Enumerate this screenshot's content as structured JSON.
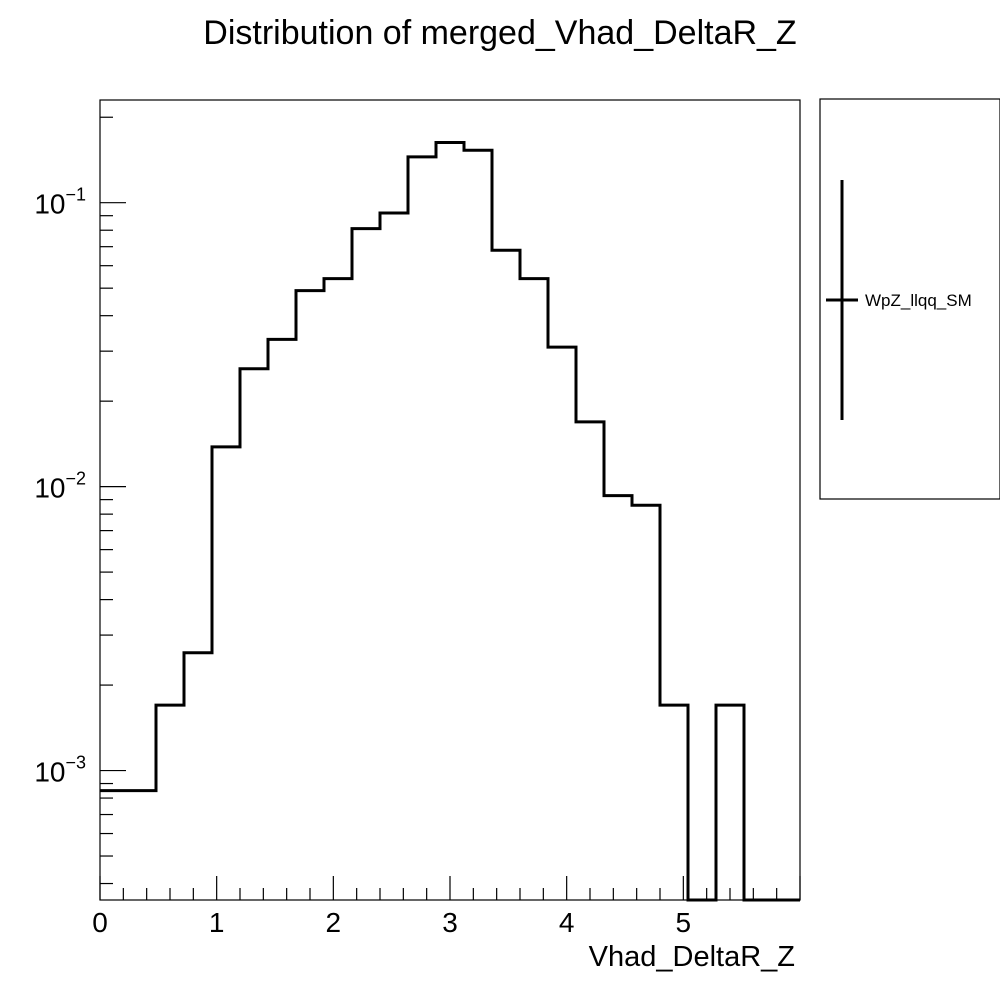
{
  "chart_data": {
    "type": "step",
    "title": "Distribution of merged_Vhad_DeltaR_Z",
    "xlabel": "Vhad_DeltaR_Z",
    "ylabel": "",
    "xlim": [
      0,
      6
    ],
    "ylim": [
      0.00035,
      0.23
    ],
    "yscale": "log",
    "grid": false,
    "legend_position": "right",
    "x_tick_labels": [
      "0",
      "1",
      "2",
      "3",
      "4",
      "5"
    ],
    "y_tick_labels": [
      {
        "value": 0.001,
        "base": "10",
        "exp": "−3"
      },
      {
        "value": 0.01,
        "base": "10",
        "exp": "−2"
      },
      {
        "value": 0.1,
        "base": "10",
        "exp": "−1"
      }
    ],
    "series": [
      {
        "name": "WpZ_llqq_SM",
        "color": "#000000",
        "bin_edges": [
          0,
          0.48,
          0.72,
          0.96,
          1.2,
          1.44,
          1.68,
          1.92,
          2.16,
          2.4,
          2.64,
          2.88,
          3.12,
          3.36,
          3.6,
          3.84,
          4.08,
          4.32,
          4.56,
          4.8,
          5.04,
          5.28,
          5.52,
          6.0
        ],
        "values": [
          0.00085,
          0.0017,
          0.0026,
          0.0138,
          0.026,
          0.033,
          0.049,
          0.054,
          0.081,
          0.092,
          0.145,
          0.163,
          0.153,
          0.068,
          0.054,
          0.031,
          0.0169,
          0.0093,
          0.0086,
          0.0017,
          0,
          0.0017,
          0
        ]
      }
    ]
  }
}
